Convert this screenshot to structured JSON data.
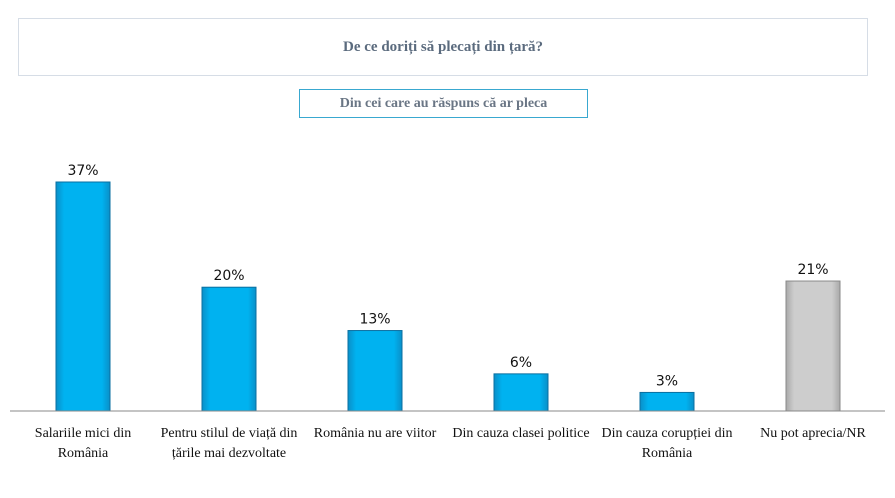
{
  "header": {
    "title": "De ce doriți să plecați din țară?",
    "subtitle": "Din cei care au răspuns că ar pleca"
  },
  "colors": {
    "main_bar": "#00b2f0",
    "main_bar_edge": "#0a6fa0",
    "other_bar": "#c9c9c9",
    "other_bar_edge": "#8a8a8a",
    "axis": "#888888"
  },
  "chart_data": {
    "type": "bar",
    "title": "De ce doriți să plecați din țară?",
    "subtitle": "Din cei care au răspuns că ar pleca",
    "categories": [
      "Salariile mici din România",
      "Pentru stilul de viață din țările mai dezvoltate",
      "România nu are viitor",
      "Din cauza clasei politice",
      "Din cauza corupției din România",
      "Nu pot aprecia/NR"
    ],
    "values": [
      37,
      20,
      13,
      6,
      3,
      21
    ],
    "value_labels": [
      "37%",
      "20%",
      "13%",
      "6%",
      "3%",
      "21%"
    ],
    "unit": "%",
    "highlight": [
      false,
      false,
      false,
      false,
      false,
      true
    ],
    "ylim": [
      0,
      40
    ],
    "grid": false,
    "legend": "none"
  }
}
